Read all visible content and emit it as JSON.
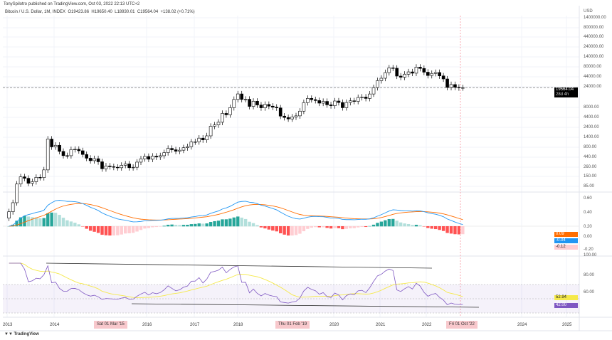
{
  "header": {
    "published": "TonySpilotro published on TradingView.com, Oct 03, 2022 22:13 UTC+2",
    "symbol": "Bitcoin / U.S. Dollar, 1M, INDEX",
    "open": "O19423.86",
    "high": "H19650.40",
    "low": "L18930.01",
    "close": "C19564.04",
    "change": "+138.02 (+0.71%)"
  },
  "price_axis": {
    "currency": "USD",
    "labels": [
      "1400000.00",
      "800000.00",
      "440000.00",
      "240000.00",
      "140000.00",
      "80000.00",
      "44000.00",
      "24000.00",
      "8000.00",
      "4400.00",
      "2400.00",
      "1400.00",
      "800.00",
      "440.00",
      "260.00",
      "150.00",
      "85.00"
    ],
    "last_price": "19564.04",
    "countdown": "28d 4h"
  },
  "macd_axis": {
    "labels": [
      "0.60",
      "0.40",
      "0.20",
      "0.00",
      "-0.20"
    ],
    "tags": {
      "signal": "0.09",
      "macd": "-0.04",
      "hist": "-0.12"
    }
  },
  "rsi_axis": {
    "labels": [
      "100.00",
      "80.00",
      "60.00"
    ],
    "tags": {
      "ma": "52.94",
      "rsi": "42.00"
    }
  },
  "time_axis": {
    "labels": [
      "2013",
      "2014",
      "2016",
      "2017",
      "2018",
      "2020",
      "2021",
      "2022",
      "2024",
      "2025"
    ],
    "highlights": [
      "Sat 01 Mar '15",
      "Thu 01 Feb '19",
      "Fri 01 Oct '22"
    ]
  },
  "footer": {
    "brand": "TradingView"
  },
  "colors": {
    "up": "#ffffff",
    "down": "#000000",
    "macd": "#2196f3",
    "signal": "#ff6d00",
    "hist_up": "#26a69a",
    "hist_up_light": "#b2dfdb",
    "hist_down": "#ff5252",
    "hist_down_light": "#ffcdd2",
    "rsi": "#7e57c2",
    "rsi_ma": "#f5e94a"
  },
  "chart_data": {
    "type": "candlestick",
    "start": "2013-01",
    "interval": "1M",
    "scale": "log",
    "closes": [
      20,
      33,
      93,
      139,
      128,
      97,
      106,
      135,
      133,
      204,
      1130,
      732,
      800,
      570,
      450,
      448,
      630,
      640,
      590,
      480,
      390,
      340,
      380,
      320,
      217,
      254,
      244,
      236,
      230,
      263,
      284,
      230,
      236,
      314,
      378,
      430,
      369,
      437,
      416,
      448,
      531,
      673,
      624,
      575,
      609,
      698,
      742,
      963,
      970,
      1190,
      1080,
      1350,
      2300,
      2480,
      2875,
      4700,
      4340,
      6470,
      10200,
      13850,
      10200,
      10300,
      6930,
      9240,
      7500,
      6400,
      7730,
      7030,
      6630,
      6370,
      4040,
      3740,
      3460,
      3850,
      4100,
      5320,
      8560,
      10820,
      10080,
      9600,
      8300,
      9150,
      7570,
      7200,
      9350,
      8600,
      6440,
      8620,
      9450,
      9140,
      11350,
      11650,
      10780,
      13800,
      19700,
      28990,
      33100,
      45200,
      58800,
      57700,
      37300,
      35000,
      41500,
      47100,
      43800,
      61300,
      57000,
      46300,
      38500,
      43200,
      45500,
      37700,
      31800,
      19900,
      23300,
      20050,
      19420,
      19564
    ]
  }
}
